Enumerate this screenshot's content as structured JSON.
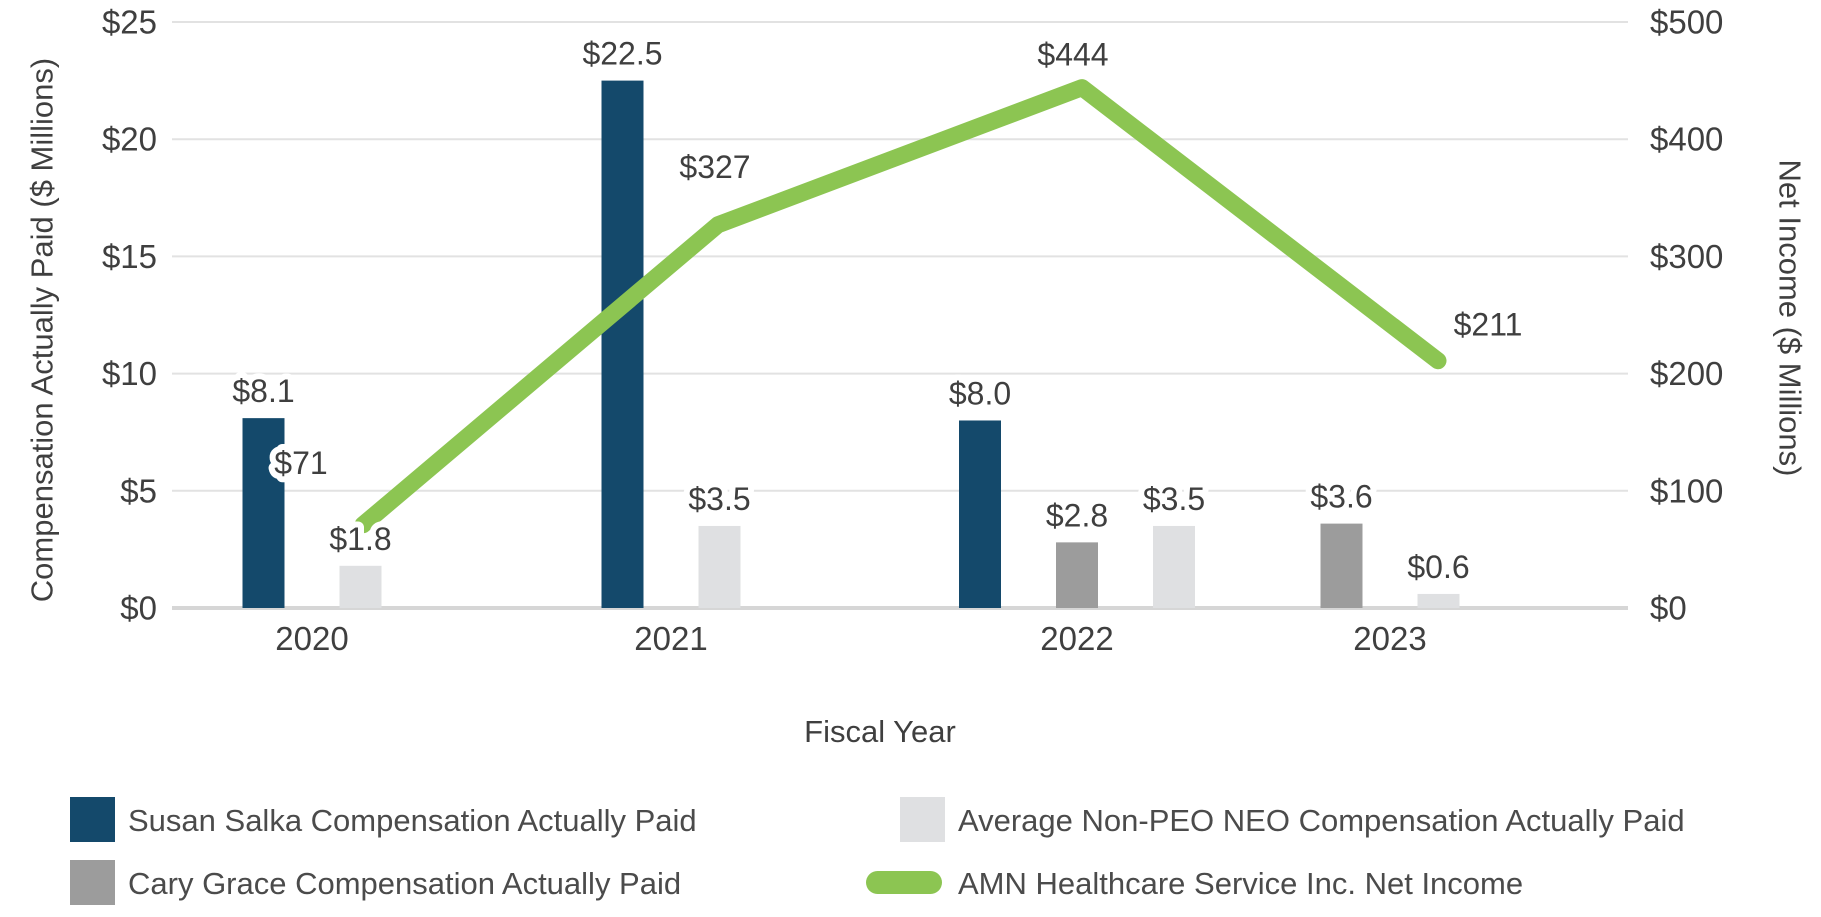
{
  "chart_data": {
    "type": "combo",
    "categories": [
      "2020",
      "2021",
      "2022",
      "2023"
    ],
    "series": [
      {
        "name": "Susan Salka Compensation Actually Paid",
        "type": "bar",
        "axis": "left",
        "color": "#14496B",
        "values": [
          8.1,
          22.5,
          8.0,
          null
        ],
        "labels": [
          "$8.1",
          "$22.5",
          "$8.0",
          null
        ]
      },
      {
        "name": "Cary Grace Compensation Actually Paid",
        "type": "bar",
        "axis": "left",
        "color": "#9C9C9C",
        "values": [
          null,
          null,
          2.8,
          3.6
        ],
        "labels": [
          null,
          null,
          "$2.8",
          "$3.6"
        ]
      },
      {
        "name": "Average Non-PEO NEO Compensation Actually Paid",
        "type": "bar",
        "axis": "left",
        "color": "#DFE0E2",
        "values": [
          1.8,
          3.5,
          3.5,
          0.6
        ],
        "labels": [
          "$1.8",
          "$3.5",
          "$3.5",
          "$0.6"
        ]
      },
      {
        "name": "AMN Healthcare Service Inc. Net Income",
        "type": "line",
        "axis": "right",
        "color": "#8CC552",
        "values": [
          71,
          327,
          444,
          211
        ],
        "labels": [
          "$71",
          "$327",
          "$444",
          "$211"
        ]
      }
    ],
    "left_axis": {
      "title": "Compensation Actually Paid ($ Millions)",
      "min": 0,
      "max": 25,
      "ticks": [
        "$25",
        "$20",
        "$15",
        "$10",
        "$5",
        "$0"
      ]
    },
    "right_axis": {
      "title": "Net Income ($ Millions)",
      "min": 0,
      "max": 500,
      "ticks": [
        "$500",
        "$400",
        "$300",
        "$200",
        "$100",
        "$0"
      ]
    },
    "x_axis": {
      "title": "Fiscal Year"
    },
    "grid": "horizontal",
    "legend_position": "bottom"
  },
  "colors": {
    "grid": "#E2E2E2",
    "axis_line": "#D6D6D6",
    "text": "#3F3F3F",
    "legend_text": "#4B4B4B"
  }
}
